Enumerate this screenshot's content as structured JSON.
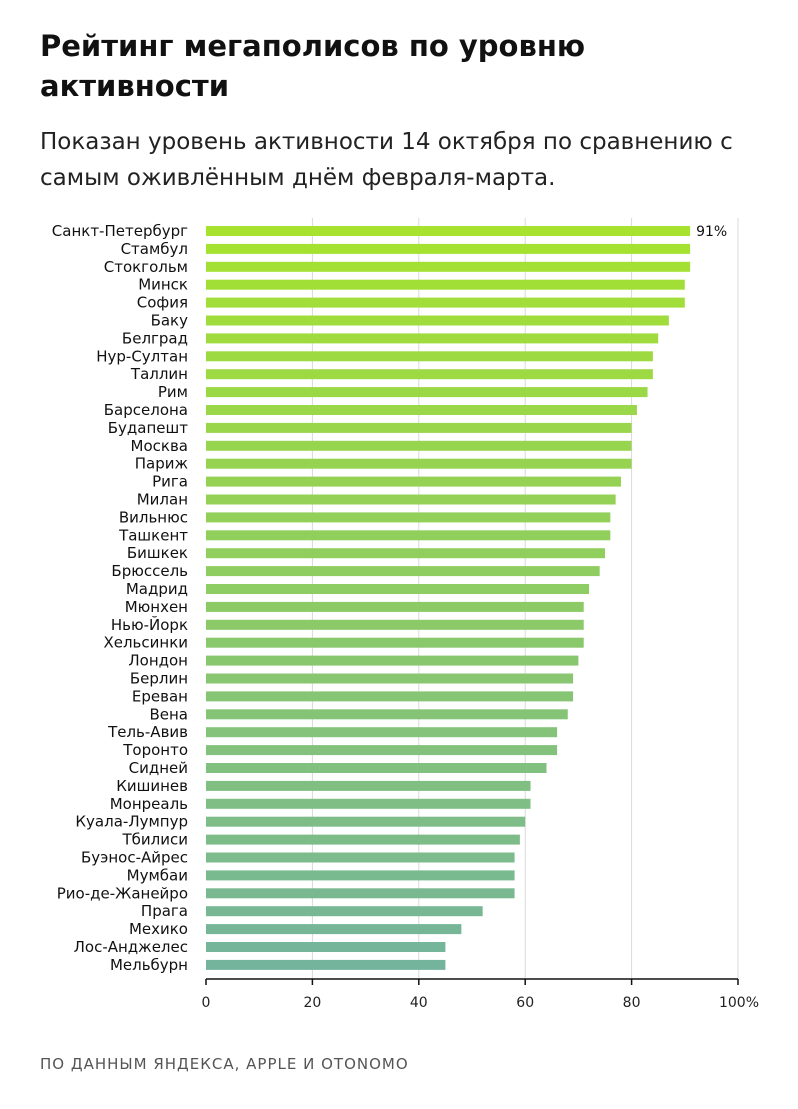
{
  "title": "Рейтинг мегаполисов по уровню активности",
  "subtitle": "Показан уровень активности 14 октября по сравнению с самым оживлённым днём февраля-марта.",
  "source": "ПО ДАННЫМ ЯНДЕКСА, APPLE И OTONOMO",
  "colors": {
    "bar_top": "#a6e22e",
    "bar_bottom": "#74b49c",
    "axis": "#111111",
    "grid": "#d9d9d9"
  },
  "chart_data": {
    "type": "bar",
    "orientation": "horizontal",
    "categories": [
      "Санкт-Петербург",
      "Стамбул",
      "Стокгольм",
      "Минск",
      "София",
      "Баку",
      "Белград",
      "Нур-Султан",
      "Таллин",
      "Рим",
      "Барселона",
      "Будапешт",
      "Москва",
      "Париж",
      "Рига",
      "Милан",
      "Вильнюс",
      "Ташкент",
      "Бишкек",
      "Брюссель",
      "Мадрид",
      "Мюнхен",
      "Нью-Йорк",
      "Хельсинки",
      "Лондон",
      "Берлин",
      "Ереван",
      "Вена",
      "Тель-Авив",
      "Торонто",
      "Сидней",
      "Кишинев",
      "Монреаль",
      "Куала-Лумпур",
      "Тбилиси",
      "Буэнос-Айрес",
      "Мумбаи",
      "Рио-де-Жанейро",
      "Прага",
      "Мехико",
      "Лос-Анджелес",
      "Мельбурн"
    ],
    "values": [
      91,
      91,
      91,
      90,
      90,
      87,
      85,
      84,
      84,
      83,
      81,
      80,
      80,
      80,
      78,
      77,
      76,
      76,
      75,
      74,
      72,
      71,
      71,
      71,
      70,
      69,
      69,
      68,
      66,
      66,
      64,
      61,
      61,
      60,
      59,
      58,
      58,
      58,
      52,
      48,
      45,
      45
    ],
    "data_labels": [
      {
        "index": 0,
        "text": "91%"
      }
    ],
    "xlim": [
      0,
      100
    ],
    "xticks": [
      "0",
      "20",
      "40",
      "60",
      "80",
      "100%"
    ],
    "grid": true,
    "legend": "none"
  }
}
